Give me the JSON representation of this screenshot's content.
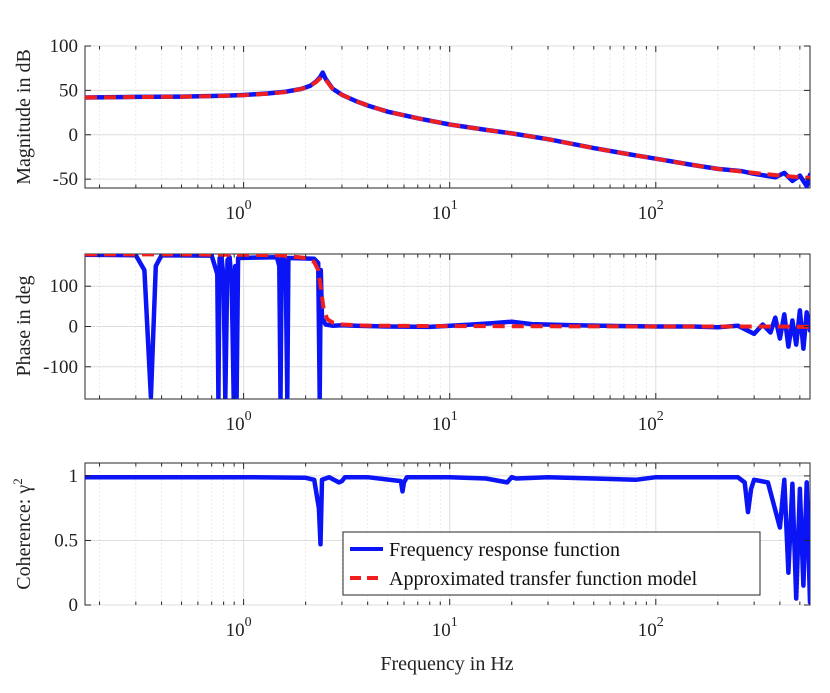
{
  "colors": {
    "frf": "#0a14f5",
    "model": "#f01e1e",
    "grid": "#dedede",
    "axis": "#262626"
  },
  "chart_data": [
    {
      "type": "line",
      "id": "magnitude",
      "xscale": "log",
      "xlim": [
        0.17,
        560
      ],
      "ylim": [
        -60,
        100
      ],
      "ylabel": "Magnitude in dB",
      "yticks": [
        100,
        50,
        0,
        -50
      ],
      "ytick_labels": [
        "100",
        "50",
        "0",
        "-50"
      ],
      "xticks": [
        1,
        10,
        100
      ],
      "xtick_labels": [
        {
          "base": "10",
          "exp": "0"
        },
        {
          "base": "10",
          "exp": "1"
        },
        {
          "base": "10",
          "exp": "2"
        }
      ],
      "series": [
        {
          "name": "Frequency response function",
          "style": "solid",
          "x": [
            0.17,
            0.3,
            0.5,
            0.8,
            1.0,
            1.3,
            1.6,
            1.9,
            2.1,
            2.25,
            2.35,
            2.42,
            2.5,
            2.7,
            3.0,
            3.5,
            4,
            5,
            7,
            10,
            15,
            20,
            30,
            50,
            70,
            100,
            150,
            200,
            260,
            300,
            340,
            380,
            420,
            460,
            500,
            540,
            560
          ],
          "y": [
            42,
            42.6,
            43,
            44,
            44.8,
            46.5,
            48.5,
            51.5,
            55,
            60,
            65,
            70,
            63,
            52,
            45,
            38,
            33,
            26,
            18.5,
            11.5,
            5.5,
            1.5,
            -5,
            -15,
            -21,
            -27,
            -34,
            -38.5,
            -41,
            -44,
            -46,
            -48,
            -43,
            -52,
            -46,
            -58,
            -45
          ]
        },
        {
          "name": "Approximated transfer function model",
          "style": "dashed",
          "x": [
            0.17,
            0.3,
            0.5,
            0.8,
            1.0,
            1.3,
            1.6,
            1.9,
            2.1,
            2.25,
            2.35,
            2.42,
            2.5,
            2.7,
            3.0,
            3.5,
            4,
            5,
            7,
            10,
            15,
            20,
            30,
            50,
            70,
            100,
            150,
            200,
            300,
            400,
            500,
            560
          ],
          "y": [
            42,
            42.5,
            42.9,
            43.8,
            44.6,
            46.2,
            48.2,
            51.5,
            55,
            59.5,
            63.5,
            66,
            62,
            52,
            45,
            38,
            33,
            26,
            18.5,
            11.5,
            5.5,
            1.5,
            -5,
            -15,
            -21,
            -27,
            -34,
            -38.5,
            -43,
            -46,
            -48,
            -48.5
          ]
        }
      ]
    },
    {
      "type": "line",
      "id": "phase",
      "xscale": "log",
      "xlim": [
        0.17,
        560
      ],
      "ylim": [
        -180,
        180
      ],
      "ylabel": "Phase in deg",
      "yticks": [
        100,
        0,
        -100
      ],
      "ytick_labels": [
        "100",
        "0",
        "-100"
      ],
      "xticks": [
        1,
        10,
        100
      ],
      "xtick_labels": [
        {
          "base": "10",
          "exp": "0"
        },
        {
          "base": "10",
          "exp": "1"
        },
        {
          "base": "10",
          "exp": "2"
        }
      ],
      "series": [
        {
          "name": "Frequency response function",
          "style": "solid",
          "x": [
            0.17,
            0.3,
            0.33,
            0.355,
            0.375,
            0.4,
            0.7,
            0.745,
            0.755,
            0.765,
            0.78,
            0.8,
            0.815,
            0.835,
            0.855,
            0.875,
            0.895,
            0.91,
            0.925,
            0.94,
            1.45,
            1.49,
            1.51,
            1.53,
            1.56,
            1.6,
            1.63,
            1.65,
            2.2,
            2.3,
            2.34,
            2.37,
            2.4,
            2.5,
            2.7,
            3.0,
            3.5,
            5,
            8,
            12,
            16,
            20,
            25,
            40,
            70,
            100,
            150,
            200,
            250,
            300,
            330,
            360,
            380,
            400,
            420,
            440,
            460,
            480,
            500,
            520,
            540,
            560
          ],
          "y": [
            178,
            177,
            140,
            -175,
            150,
            177,
            176,
            130,
            -178,
            170,
            175,
            120,
            -178,
            165,
            172,
            110,
            -178,
            150,
            -178,
            170,
            172,
            150,
            -178,
            170,
            173,
            140,
            -178,
            170,
            168,
            158,
            -178,
            140,
            20,
            5,
            2,
            3,
            2,
            0,
            -1,
            4,
            8,
            12,
            6,
            3,
            1,
            0,
            0,
            -2,
            2,
            -18,
            5,
            -15,
            22,
            -30,
            30,
            -50,
            15,
            -45,
            40,
            -55,
            35,
            -10
          ]
        },
        {
          "name": "Approximated transfer function model",
          "style": "dashed",
          "x": [
            0.17,
            0.5,
            1.0,
            1.5,
            2.0,
            2.2,
            2.3,
            2.38,
            2.45,
            2.55,
            2.7,
            3.0,
            4,
            10,
            100,
            400,
            560
          ],
          "y": [
            179,
            179,
            178,
            177,
            170,
            160,
            140,
            90,
            40,
            18,
            10,
            5,
            2,
            1,
            0,
            0,
            -1
          ]
        }
      ]
    },
    {
      "type": "line",
      "id": "coherence",
      "xscale": "log",
      "xlim": [
        0.17,
        560
      ],
      "ylim": [
        0,
        1.1
      ],
      "ylabel": "Coherence: γ",
      "ylabel_superscript": "2",
      "xlabel": "Frequency in Hz",
      "yticks": [
        1,
        0.5,
        0
      ],
      "ytick_labels": [
        "1",
        "0.5",
        "0"
      ],
      "xticks": [
        1,
        10,
        100
      ],
      "xtick_labels": [
        {
          "base": "10",
          "exp": "0"
        },
        {
          "base": "10",
          "exp": "1"
        },
        {
          "base": "10",
          "exp": "2"
        }
      ],
      "series": [
        {
          "name": "Frequency response function",
          "style": "solid",
          "x": [
            0.17,
            0.5,
            1.0,
            2.0,
            2.2,
            2.32,
            2.36,
            2.4,
            2.6,
            2.9,
            3.0,
            3.1,
            4,
            5.8,
            5.9,
            6.0,
            6.2,
            8,
            10,
            15,
            19,
            20,
            21,
            30,
            50,
            80,
            100,
            150,
            200,
            250,
            270,
            280,
            290,
            300,
            350,
            400,
            420,
            440,
            460,
            480,
            500,
            520,
            540,
            560
          ],
          "y": [
            0.99,
            0.99,
            0.99,
            0.985,
            0.97,
            0.75,
            0.47,
            0.97,
            0.99,
            0.95,
            0.96,
            0.99,
            0.99,
            0.96,
            0.88,
            0.95,
            0.99,
            0.99,
            0.99,
            0.98,
            0.95,
            0.99,
            0.98,
            0.99,
            0.98,
            0.97,
            0.99,
            0.99,
            0.99,
            0.99,
            0.95,
            0.72,
            0.9,
            0.97,
            0.95,
            0.6,
            0.97,
            0.25,
            0.94,
            0.05,
            0.9,
            0.15,
            0.95,
            0.02
          ]
        }
      ]
    }
  ],
  "legend": {
    "items": [
      {
        "label": "Frequency response function",
        "style": "solid",
        "color_key": "frf"
      },
      {
        "label": "Approximated transfer function model",
        "style": "dashed",
        "color_key": "model"
      }
    ],
    "location": "lower-right of coherence panel"
  }
}
